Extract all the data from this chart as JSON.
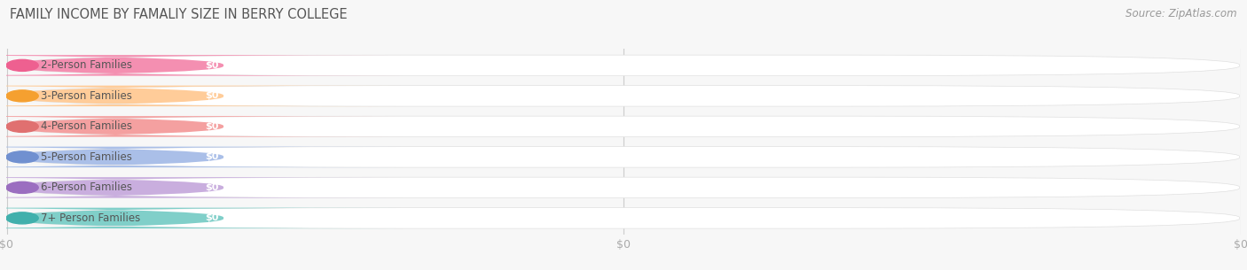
{
  "title": "FAMILY INCOME BY FAMALIY SIZE IN BERRY COLLEGE",
  "source": "Source: ZipAtlas.com",
  "categories": [
    "2-Person Families",
    "3-Person Families",
    "4-Person Families",
    "5-Person Families",
    "6-Person Families",
    "7+ Person Families"
  ],
  "values": [
    0,
    0,
    0,
    0,
    0,
    0
  ],
  "bar_colors": [
    "#F48FB1",
    "#FFCC99",
    "#F4A0A0",
    "#AABFE8",
    "#C9AEDE",
    "#80CFC9"
  ],
  "dot_colors": [
    "#EE6090",
    "#F5A030",
    "#E07070",
    "#7090D0",
    "#9B6EC0",
    "#40B0AC"
  ],
  "background_color": "#f7f7f7",
  "bar_bg_color": "#f0f0f0",
  "bar_bg_border": "#e0e0e0",
  "title_color": "#555555",
  "source_color": "#999999",
  "label_color": "#555555",
  "value_color": "#ffffff",
  "tick_label_color": "#aaaaaa",
  "gridline_color": "#cccccc",
  "title_fontsize": 10.5,
  "source_fontsize": 8.5,
  "label_fontsize": 8.5,
  "value_fontsize": 8,
  "tick_fontsize": 9
}
